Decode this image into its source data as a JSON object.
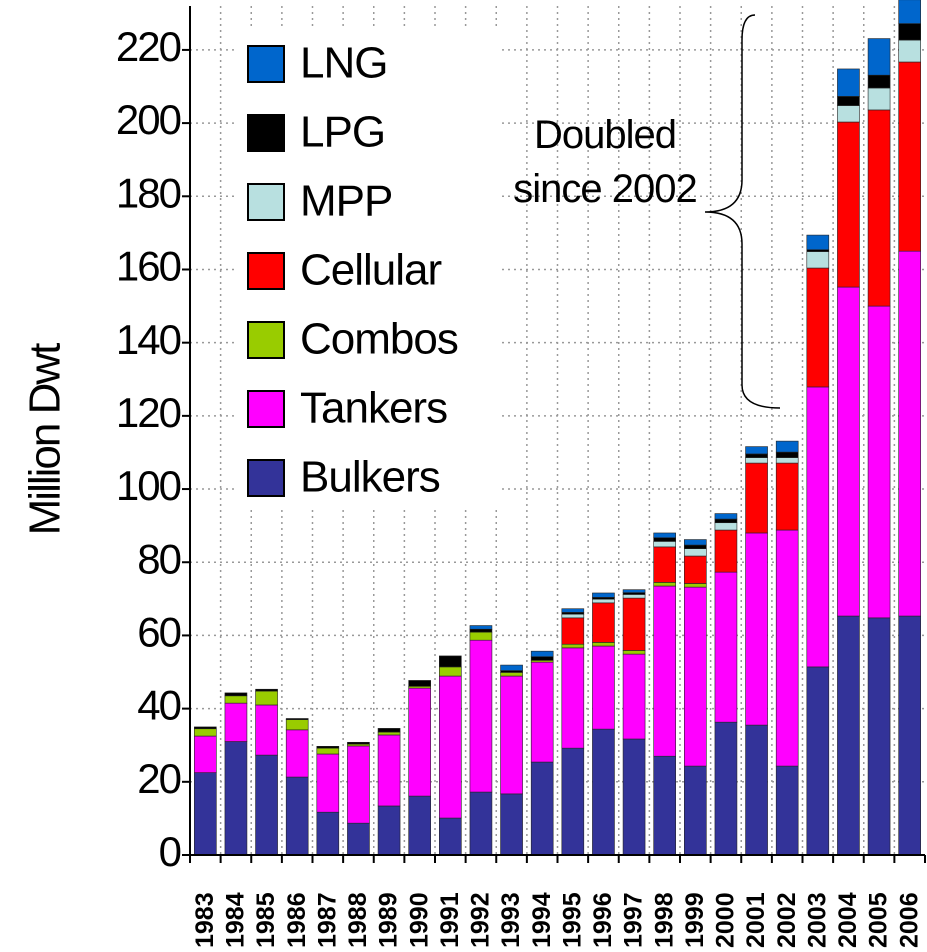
{
  "chart_data": {
    "type": "stacked_bar",
    "y_label": "Million Dwt",
    "annotation": "Doubled since 2002",
    "categories": [
      "1983",
      "1984",
      "1985",
      "1986",
      "1987",
      "1988",
      "1989",
      "1990",
      "1991",
      "1992",
      "1993",
      "1994",
      "1995",
      "1996",
      "1997",
      "1998",
      "1999",
      "2000",
      "2001",
      "2002",
      "2003",
      "2004",
      "2005",
      "2006"
    ],
    "series": [
      {
        "name": "Bulkers",
        "color": "#333399",
        "values": [
          22.5,
          31,
          27.3,
          21.3,
          11.7,
          8.7,
          13.4,
          16.1,
          10.1,
          17.2,
          16.7,
          25.4,
          29.2,
          34.4,
          31.7,
          27,
          24.3,
          36.3,
          35.5,
          24.3,
          51.4,
          65.3,
          64.8,
          65.3
        ]
      },
      {
        "name": "Tankers",
        "color": "#ff00ff",
        "values": [
          10,
          10.5,
          13.7,
          12.9,
          15.9,
          21.1,
          19.4,
          29.5,
          38.8,
          41.5,
          32.2,
          27.3,
          27.4,
          22.7,
          23.2,
          46.5,
          48.9,
          41,
          52.5,
          64.5,
          76.5,
          89.9,
          85.2,
          99.7
        ]
      },
      {
        "name": "Combos",
        "color": "#99cc00",
        "values": [
          2,
          2,
          3.8,
          2.8,
          1.6,
          0.5,
          0.8,
          0.5,
          2.5,
          2.2,
          1,
          0.5,
          1,
          1,
          1,
          1,
          1,
          0,
          0,
          0,
          0,
          0,
          0,
          0
        ]
      },
      {
        "name": "Cellular",
        "color": "#ff0000",
        "values": [
          0,
          0,
          0,
          0,
          0,
          0,
          0,
          0,
          0,
          0,
          0,
          0,
          7.2,
          10.8,
          14.3,
          9.7,
          7.5,
          11.5,
          19.1,
          18.3,
          32.5,
          45.1,
          53.6,
          51.7
        ]
      },
      {
        "name": "MPP",
        "color": "#b8e0e0",
        "values": [
          0,
          0,
          0,
          0,
          0,
          0,
          0,
          0,
          0,
          0,
          0,
          0,
          1,
          1,
          1,
          1.5,
          2,
          2,
          1.5,
          1.5,
          4.5,
          4.5,
          6,
          6
        ]
      },
      {
        "name": "LPG",
        "color": "#000000",
        "values": [
          0.5,
          0.8,
          0.5,
          0.3,
          0.5,
          0.5,
          1,
          1.6,
          3,
          0.8,
          0.5,
          1,
          0.5,
          0.5,
          0.5,
          1,
          1,
          1,
          1,
          1.5,
          0.5,
          2.5,
          3.5,
          4.5
        ]
      },
      {
        "name": "LNG",
        "color": "#0066cc",
        "values": [
          0,
          0,
          0,
          0,
          0,
          0,
          0,
          0,
          0,
          1,
          1.5,
          1.5,
          1,
          1.2,
          0.8,
          1.3,
          1.5,
          1.5,
          2,
          3,
          4,
          7.5,
          10,
          6.5
        ]
      }
    ],
    "ylim": [
      0,
      232
    ],
    "yticks": [
      0,
      20,
      40,
      60,
      80,
      100,
      120,
      140,
      160,
      180,
      200,
      220
    ],
    "grid": true
  }
}
